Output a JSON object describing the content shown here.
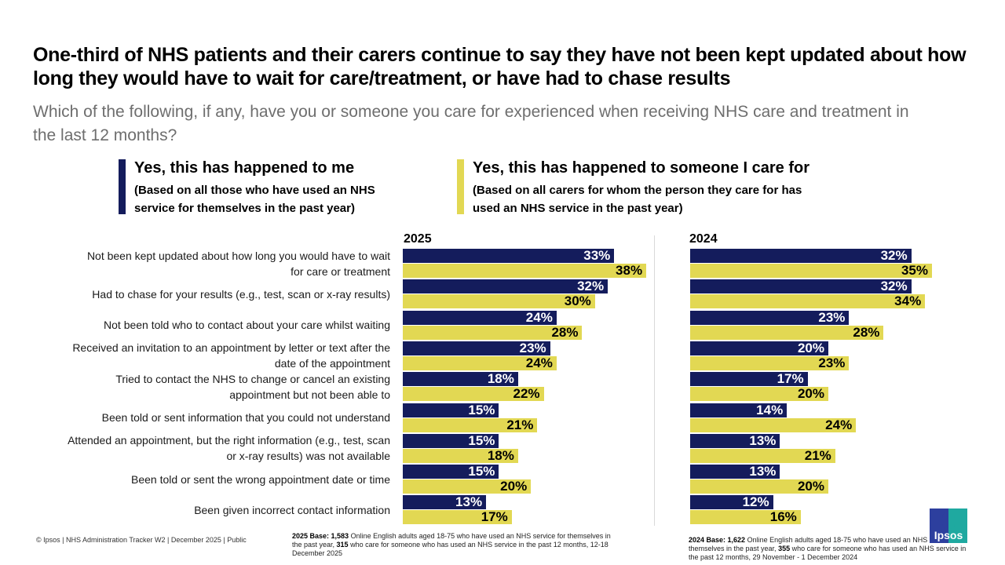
{
  "title": "One-third of NHS patients and their carers continue to say they have not been kept updated about how long they would have to wait for care/treatment, or have had to chase results",
  "subtitle": "Which of the following, if any, have you or someone you care for experienced when receiving NHS care and treatment in the last 12 months?",
  "legend": {
    "me": {
      "heading": "Yes, this has happened to me",
      "sub_line1": "(Based on all those who have used an NHS",
      "sub_line2": "service for themselves in the past year)",
      "color": "#141c5c"
    },
    "carer": {
      "heading": "Yes, this has happened to someone I care for",
      "sub_line1": "(Based on all carers for whom the person they care for has",
      "sub_line2": "used an NHS service in the past year)",
      "color": "#e2d853"
    }
  },
  "chart_data": {
    "type": "bar",
    "orientation": "horizontal",
    "title": "One-third of NHS patients and their carers continue to say they have not been kept updated about how long they would have to wait for care/treatment, or have had to chase results",
    "categories": [
      [
        "Not been kept updated about how long you would have to wait",
        "for care or treatment"
      ],
      [
        "Had to chase for your results (e.g., test, scan or x-ray results)"
      ],
      [
        "Not been told who to contact about your care whilst waiting"
      ],
      [
        "Received an invitation to an appointment by letter or text after the",
        "date of the appointment"
      ],
      [
        "Tried to contact the NHS to change or cancel an existing",
        "appointment but not been able to"
      ],
      [
        "Been told or sent information that you could not understand"
      ],
      [
        "Attended an appointment, but the right information (e.g., test, scan",
        "or x-ray results) was not available"
      ],
      [
        "Been told or sent the wrong appointment date or time"
      ],
      [
        "Been given incorrect contact information"
      ]
    ],
    "panels": [
      {
        "year": "2025",
        "series": [
          {
            "name": "Yes, this has happened to me",
            "values": [
              33,
              32,
              24,
              23,
              18,
              15,
              15,
              15,
              13
            ]
          },
          {
            "name": "Yes, this has happened to someone I care for",
            "values": [
              38,
              30,
              28,
              24,
              22,
              21,
              18,
              20,
              17
            ]
          }
        ]
      },
      {
        "year": "2024",
        "series": [
          {
            "name": "Yes, this has happened to me",
            "values": [
              32,
              32,
              23,
              20,
              17,
              14,
              13,
              13,
              12
            ]
          },
          {
            "name": "Yes, this has happened to someone I care for",
            "values": [
              35,
              34,
              28,
              23,
              20,
              24,
              21,
              20,
              16
            ]
          }
        ]
      }
    ],
    "value_suffix": "%",
    "xlabel": "",
    "ylabel": "",
    "grid": false
  },
  "footer": {
    "copyright": "© Ipsos | NHS Administration Tracker W2 | December 2025 | Public",
    "base_2025": {
      "bold_prefix": "2025 Base: 1,583",
      "text1": " Online English adults aged 18-75 who have used an NHS service for themselves in the past year, ",
      "bold_mid": "315",
      "text2": " who care for someone who has used an NHS service in the past 12 months, 12-18 December 2025"
    },
    "base_2024": {
      "bold_prefix": "2024 Base: 1,622",
      "text1": " Online English adults aged 18-75 who have used an NHS service for themselves in the past year, ",
      "bold_mid": "355",
      "text2": " who care for someone who has used an NHS service in the past 12 months, 29 November - 1 December 2024"
    },
    "logo_text": "Ipsos"
  }
}
